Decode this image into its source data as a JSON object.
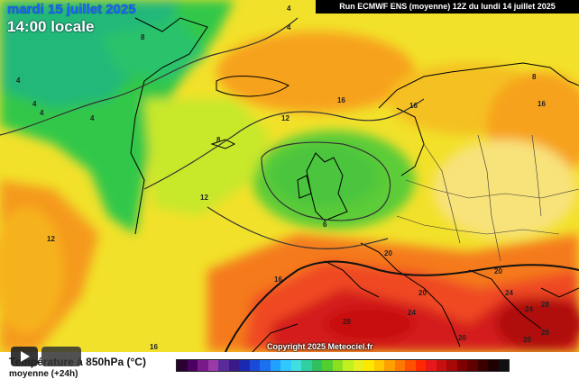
{
  "header": {
    "date_title": "mardi 15 juillet 2025",
    "time_title": "14:00 locale",
    "run_info": "Run ECMWF ENS (moyenne) 12Z du lundi 14 juillet 2025"
  },
  "map": {
    "contour_labels": [
      "4",
      "4",
      "8",
      "4",
      "4",
      "4",
      "4",
      "12",
      "12",
      "8",
      "16",
      "16",
      "8",
      "6",
      "12",
      "16",
      "20",
      "20",
      "20",
      "24",
      "20",
      "28",
      "24",
      "28",
      "24",
      "28",
      "20",
      "16",
      "16"
    ]
  },
  "footer": {
    "copyright": "Copyright 2025 Meteociel.fr",
    "legend_title": "Température à 850hPa (°C)",
    "legend_sub": "moyenne (+24h)"
  },
  "colorbar": [
    "#2a0030",
    "#4a0060",
    "#7a1a8a",
    "#9a3aa8",
    "#5a2a9a",
    "#3a1a8a",
    "#1a2ab0",
    "#1a4ad8",
    "#1a70f0",
    "#20a0ff",
    "#30c8ff",
    "#40e0e0",
    "#30d0a0",
    "#30c060",
    "#50d030",
    "#8ae020",
    "#c0f020",
    "#e8f020",
    "#ffe800",
    "#ffc800",
    "#ffa000",
    "#ff7800",
    "#ff5000",
    "#ff2800",
    "#e81818",
    "#c81010",
    "#a80808",
    "#800000",
    "#600000",
    "#3a0000",
    "#200000",
    "#101010"
  ],
  "colors": {
    "date_title": "#1f63ff",
    "sea_green": "#3ed23e",
    "warm_red": "#d41010"
  }
}
